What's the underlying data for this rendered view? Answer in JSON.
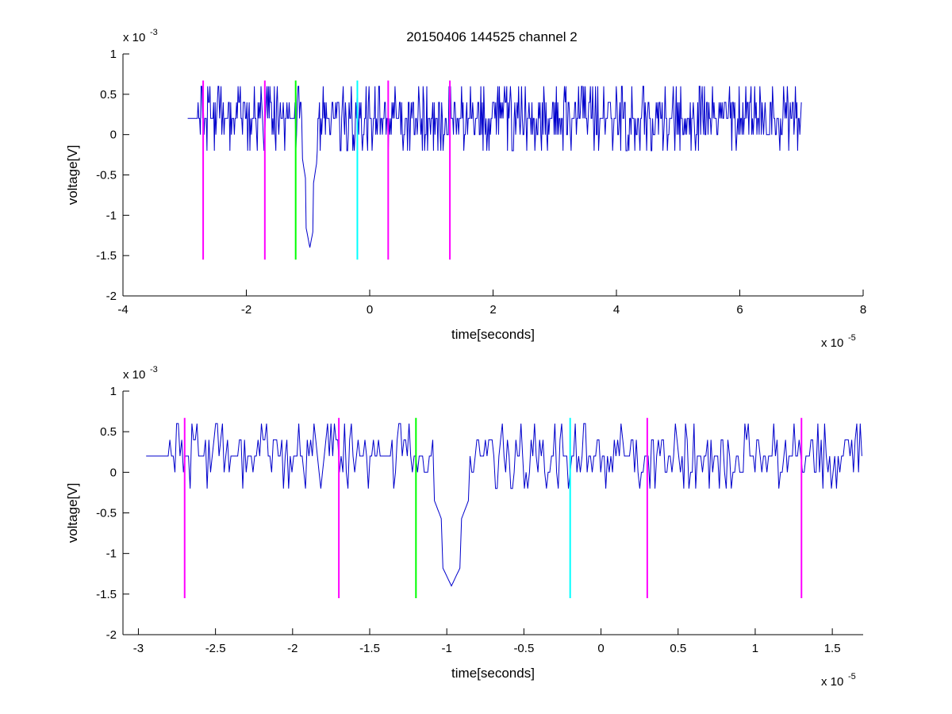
{
  "figure_title": "20150406 144525 channel 2",
  "colors": {
    "signal": "#0000cc",
    "magenta": "#ff00ff",
    "green": "#00ff00",
    "cyan": "#00ffff",
    "axes": "#000000"
  },
  "chart_data": [
    {
      "type": "line",
      "title": "20150406 144525 channel 2",
      "xlabel": "time[seconds]",
      "ylabel": "voltage[V]",
      "x_multiplier_label": "x 10",
      "x_multiplier_exp": "-5",
      "y_multiplier_label": "x 10",
      "y_multiplier_exp": "-3",
      "xlim": [
        -4,
        8
      ],
      "ylim": [
        -2,
        1
      ],
      "x_units_scale": "1e-5",
      "y_units_scale": "1e-3",
      "xticks": [
        "-4",
        "-2",
        "0",
        "2",
        "4",
        "6",
        "8"
      ],
      "yticks": [
        "-2",
        "-1.5",
        "-1",
        "-0.5",
        "0",
        "0.5",
        "1"
      ],
      "xtick_values": [
        -4,
        -2,
        0,
        2,
        4,
        6,
        8
      ],
      "ytick_values": [
        -2,
        -1.5,
        -1,
        -0.5,
        0,
        0.5,
        1
      ],
      "grid": false,
      "signal_range": [
        -2.95,
        7.0
      ],
      "spike": {
        "x": -0.97,
        "min": -1.4
      },
      "markers": [
        {
          "x": -2.7,
          "color": "magenta",
          "ymin": -1.55,
          "ymax": 0.67
        },
        {
          "x": -1.7,
          "color": "magenta",
          "ymin": -1.55,
          "ymax": 0.67
        },
        {
          "x": -1.2,
          "color": "green",
          "ymin": -1.55,
          "ymax": 0.67
        },
        {
          "x": -0.2,
          "color": "cyan",
          "ymin": -1.55,
          "ymax": 0.67
        },
        {
          "x": 0.3,
          "color": "magenta",
          "ymin": -1.55,
          "ymax": 0.67
        },
        {
          "x": 1.3,
          "color": "magenta",
          "ymin": -1.55,
          "ymax": 0.67
        }
      ]
    },
    {
      "type": "line",
      "title": "",
      "xlabel": "time[seconds]",
      "ylabel": "voltage[V]",
      "x_multiplier_label": "x 10",
      "x_multiplier_exp": "-5",
      "y_multiplier_label": "x 10",
      "y_multiplier_exp": "-3",
      "xlim": [
        -3.1,
        1.7
      ],
      "ylim": [
        -2,
        1
      ],
      "xticks": [
        "-3",
        "-2.5",
        "-2",
        "-1.5",
        "-1",
        "-0.5",
        "0",
        "0.5",
        "1",
        "1.5"
      ],
      "yticks": [
        "-2",
        "-1.5",
        "-1",
        "-0.5",
        "0",
        "0.5",
        "1"
      ],
      "xtick_values": [
        -3,
        -2.5,
        -2,
        -1.5,
        -1,
        -0.5,
        0,
        0.5,
        1,
        1.5
      ],
      "ytick_values": [
        -2,
        -1.5,
        -1,
        -0.5,
        0,
        0.5,
        1
      ],
      "grid": false,
      "signal_range": [
        -2.95,
        1.7
      ],
      "spike": {
        "x": -0.97,
        "min": -1.4
      },
      "markers": [
        {
          "x": -2.7,
          "color": "magenta",
          "ymin": -1.55,
          "ymax": 0.67
        },
        {
          "x": -1.7,
          "color": "magenta",
          "ymin": -1.55,
          "ymax": 0.67
        },
        {
          "x": -1.2,
          "color": "green",
          "ymin": -1.55,
          "ymax": 0.67
        },
        {
          "x": -0.2,
          "color": "cyan",
          "ymin": -1.55,
          "ymax": 0.67
        },
        {
          "x": 0.3,
          "color": "magenta",
          "ymin": -1.55,
          "ymax": 0.67
        },
        {
          "x": 1.3,
          "color": "magenta",
          "ymin": -1.55,
          "ymax": 0.67
        }
      ]
    }
  ]
}
